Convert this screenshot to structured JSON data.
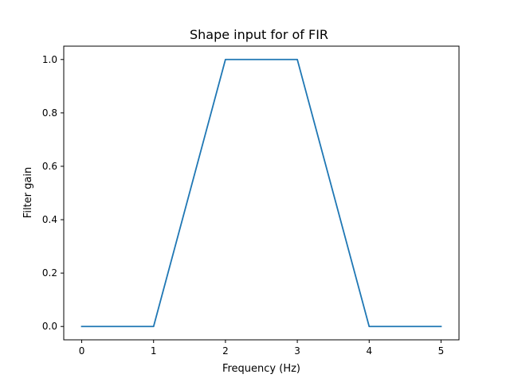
{
  "chart_data": {
    "type": "line",
    "title": "Shape input for of FIR",
    "xlabel": "Frequency (Hz)",
    "ylabel": "Filter gain",
    "xlim": [
      -0.25,
      5.25
    ],
    "ylim": [
      -0.05,
      1.05
    ],
    "xticks": [
      0,
      1,
      2,
      3,
      4,
      5
    ],
    "xtick_labels": [
      "0",
      "1",
      "2",
      "3",
      "4",
      "5"
    ],
    "yticks": [
      0.0,
      0.2,
      0.4,
      0.6,
      0.8,
      1.0
    ],
    "ytick_labels": [
      "0.0",
      "0.2",
      "0.4",
      "0.6",
      "0.8",
      "1.0"
    ],
    "grid": false,
    "series": [
      {
        "color": "#1f77b4",
        "x": [
          0,
          1,
          2,
          3,
          4,
          5
        ],
        "y": [
          0,
          0,
          1,
          1,
          0,
          0
        ]
      }
    ]
  }
}
